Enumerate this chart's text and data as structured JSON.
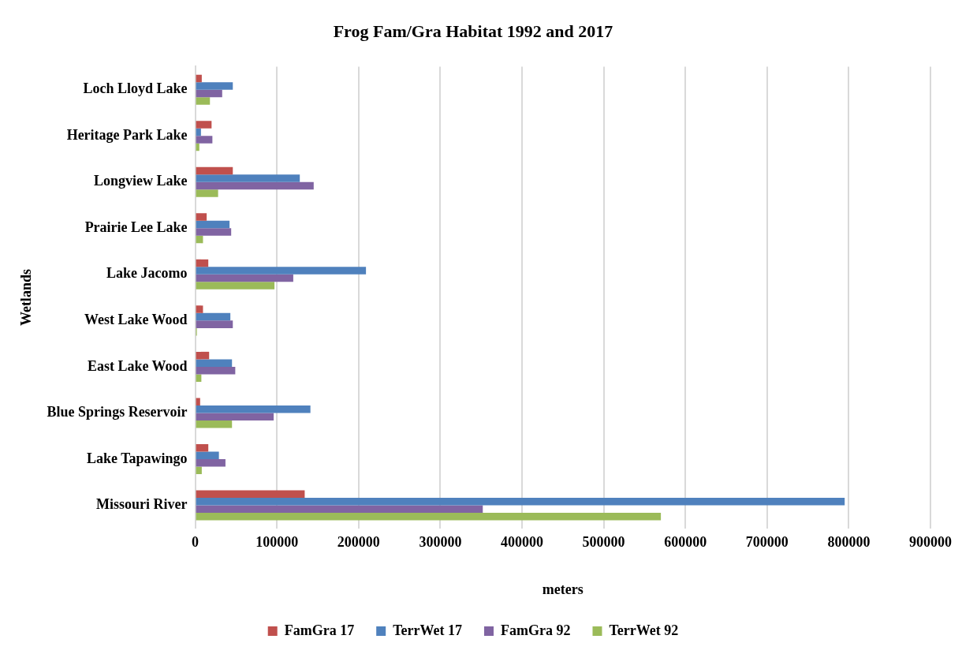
{
  "chart_data": {
    "type": "bar",
    "orientation": "horizontal",
    "title": "Frog Fam/Gra Habitat 1992 and 2017",
    "xlabel": "meters",
    "ylabel": "Wetlands",
    "categories": [
      "Loch Lloyd Lake",
      "Heritage Park Lake",
      "Longview Lake",
      "Prairie Lee Lake",
      "Lake Jacomo",
      "West Lake Wood",
      "East Lake Wood",
      "Blue Springs Reservoir",
      "Lake Tapawingo",
      "Missouri River"
    ],
    "series": [
      {
        "name": "FamGra 17",
        "color": "#c0504d",
        "values": [
          8000,
          20000,
          46000,
          14000,
          16000,
          9500,
          17000,
          6000,
          16000,
          134000
        ]
      },
      {
        "name": "TerrWet 17",
        "color": "#4f81bd",
        "values": [
          46000,
          7000,
          128000,
          42000,
          209000,
          43000,
          45000,
          141000,
          29000,
          795000
        ]
      },
      {
        "name": "FamGra 92",
        "color": "#8064a2",
        "values": [
          33000,
          21000,
          145000,
          44000,
          120000,
          46000,
          49000,
          96000,
          37000,
          352000
        ]
      },
      {
        "name": "TerrWet 92",
        "color": "#9bbb59",
        "values": [
          18000,
          5000,
          28000,
          9500,
          97000,
          2000,
          7500,
          45000,
          8000,
          570000
        ]
      }
    ],
    "xlim": [
      0,
      900000
    ],
    "xticks": [
      0,
      100000,
      200000,
      300000,
      400000,
      500000,
      600000,
      700000,
      800000,
      900000
    ],
    "grid": "x",
    "legend": "bottom"
  }
}
